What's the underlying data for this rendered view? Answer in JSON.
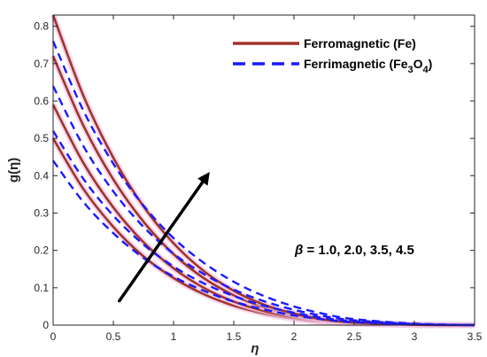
{
  "chart_data": {
    "type": "line",
    "xlabel": "η",
    "ylabel": "g(η)",
    "xlim": [
      0,
      3.5
    ],
    "ylim": [
      0,
      0.83
    ],
    "xticks": [
      "0",
      "0.5",
      "1",
      "1.5",
      "2",
      "2.5",
      "3",
      "3.5"
    ],
    "yticks": [
      "0",
      "0.1",
      "0.2",
      "0.3",
      "0.4",
      "0.5",
      "0.6",
      "0.7",
      "0.8"
    ],
    "legend_position": "top-right",
    "legend": [
      {
        "label": "Ferromagnetic (Fe)",
        "color": "#a0342a",
        "style": "solid"
      },
      {
        "label": "Ferrimagnetic (Fe",
        "sub": "3",
        "mid": "O",
        "sub2": "4",
        "end": ")",
        "color": "#1a1aff",
        "style": "dashed"
      }
    ],
    "annotation": {
      "symbol": "β",
      "text": " = 1.0, 2.0, 3.5, 4.5"
    },
    "arrow": {
      "from": [
        0.55,
        0.065
      ],
      "to": [
        1.3,
        0.41
      ]
    },
    "series": [
      {
        "group": "Fe",
        "color": "#a0342a",
        "style": "solid",
        "x": [
          0,
          0.25,
          0.5,
          0.75,
          1.0,
          1.25,
          1.5,
          1.75,
          2.0,
          2.25,
          2.5,
          3.0,
          3.5
        ],
        "y": [
          0.5,
          0.365,
          0.263,
          0.184,
          0.126,
          0.083,
          0.052,
          0.031,
          0.017,
          0.008,
          0.004,
          0.001,
          0.0
        ]
      },
      {
        "group": "Fe",
        "color": "#a0342a",
        "style": "solid",
        "x": [
          0,
          0.25,
          0.5,
          0.75,
          1.0,
          1.25,
          1.5,
          1.75,
          2.0,
          2.25,
          2.5,
          3.0,
          3.5
        ],
        "y": [
          0.59,
          0.435,
          0.315,
          0.222,
          0.152,
          0.1,
          0.063,
          0.038,
          0.021,
          0.01,
          0.005,
          0.001,
          0.0
        ]
      },
      {
        "group": "Fe",
        "color": "#a0342a",
        "style": "solid",
        "x": [
          0,
          0.25,
          0.5,
          0.75,
          1.0,
          1.25,
          1.5,
          1.75,
          2.0,
          2.25,
          2.5,
          3.0,
          3.5
        ],
        "y": [
          0.72,
          0.535,
          0.39,
          0.277,
          0.19,
          0.126,
          0.08,
          0.048,
          0.027,
          0.013,
          0.006,
          0.001,
          0.0
        ]
      },
      {
        "group": "Fe",
        "color": "#a0342a",
        "style": "solid",
        "x": [
          0,
          0.25,
          0.5,
          0.75,
          1.0,
          1.25,
          1.5,
          1.75,
          2.0,
          2.25,
          2.5,
          3.0,
          3.5
        ],
        "y": [
          0.83,
          0.615,
          0.448,
          0.318,
          0.219,
          0.145,
          0.092,
          0.055,
          0.031,
          0.015,
          0.007,
          0.001,
          0.0
        ]
      },
      {
        "group": "Fe3O4",
        "color": "#1a1aff",
        "style": "dashed",
        "x": [
          0,
          0.25,
          0.5,
          0.75,
          1.0,
          1.25,
          1.5,
          1.75,
          2.0,
          2.25,
          2.5,
          3.0,
          3.5
        ],
        "y": [
          0.44,
          0.33,
          0.246,
          0.18,
          0.13,
          0.092,
          0.063,
          0.042,
          0.026,
          0.015,
          0.008,
          0.002,
          0.0
        ]
      },
      {
        "group": "Fe3O4",
        "color": "#1a1aff",
        "style": "dashed",
        "x": [
          0,
          0.25,
          0.5,
          0.75,
          1.0,
          1.25,
          1.5,
          1.75,
          2.0,
          2.25,
          2.5,
          3.0,
          3.5
        ],
        "y": [
          0.52,
          0.392,
          0.293,
          0.216,
          0.157,
          0.112,
          0.078,
          0.052,
          0.033,
          0.019,
          0.01,
          0.002,
          0.0
        ]
      },
      {
        "group": "Fe3O4",
        "color": "#1a1aff",
        "style": "dashed",
        "x": [
          0,
          0.25,
          0.5,
          0.75,
          1.0,
          1.25,
          1.5,
          1.75,
          2.0,
          2.25,
          2.5,
          3.0,
          3.5
        ],
        "y": [
          0.64,
          0.48,
          0.358,
          0.263,
          0.191,
          0.137,
          0.095,
          0.064,
          0.041,
          0.024,
          0.013,
          0.003,
          0.0
        ]
      },
      {
        "group": "Fe3O4",
        "color": "#1a1aff",
        "style": "dashed",
        "x": [
          0,
          0.25,
          0.5,
          0.75,
          1.0,
          1.25,
          1.5,
          1.75,
          2.0,
          2.25,
          2.5,
          3.0,
          3.5
        ],
        "y": [
          0.76,
          0.575,
          0.432,
          0.32,
          0.233,
          0.167,
          0.116,
          0.078,
          0.05,
          0.03,
          0.016,
          0.004,
          0.0
        ]
      }
    ]
  }
}
